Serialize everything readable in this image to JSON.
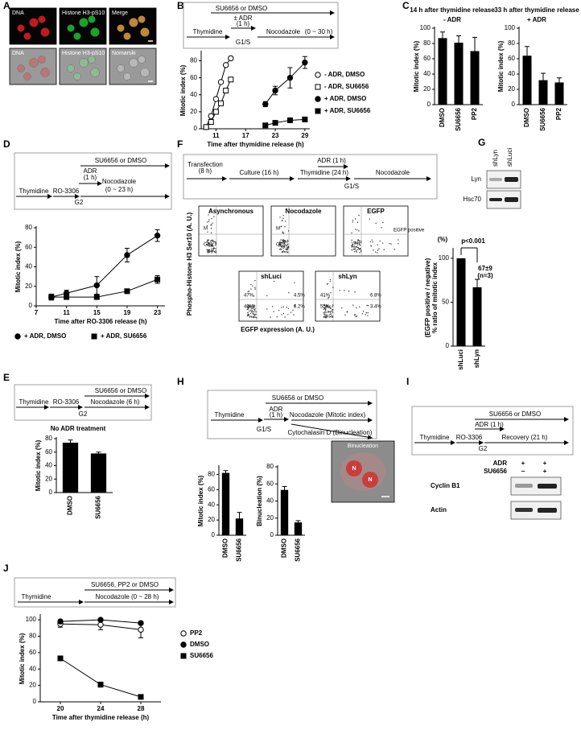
{
  "panel_labels": [
    "A",
    "B",
    "C",
    "D",
    "E",
    "F",
    "G",
    "H",
    "I",
    "J"
  ],
  "panel_a": {
    "labels": [
      "DNA",
      "Histone H3-pS10",
      "Merge",
      "DNA",
      "Histone H3-pS10",
      "Nomarski"
    ]
  },
  "schemes": {
    "b": [
      "SU6656 or DMSO",
      "± ADR",
      "(1 h)",
      "Thymidine",
      "Nocodazole",
      "(0 ~ 30 h)",
      "G1/S"
    ],
    "d": [
      "SU6656 or DMSO",
      "ADR",
      "(1 h)",
      "Thymidine",
      "RO-3306",
      "Nocodazole",
      "(0 ~ 23 h)",
      "G2"
    ],
    "e": [
      "SU6656 or DMSO",
      "Thymidine",
      "RO-3306",
      "Nocodazole (6 h)",
      "G2"
    ],
    "f": [
      "Transfection",
      "(8 h)",
      "Culture (16 h)",
      "ADR (1 h)",
      "Thymidine (24 h)",
      "G1/S",
      "Nocodazole"
    ],
    "h": [
      "SU6656 or DMSO",
      "ADR",
      "(1 h)",
      "Thymidine",
      "G1/S",
      "Nocodazole (Mitotic index)",
      "Cytochalasin D (Binucleation)"
    ],
    "i": [
      "SU6656 or DMSO",
      "ADR (1 h)",
      "Thymidine",
      "RO-3306",
      "Recovery (21 h)",
      "G2"
    ],
    "j": [
      "SU6656, PP2 or DMSO",
      "Thymidine",
      "Nocodazole (0 ~ 28 h)"
    ]
  },
  "panel_f": {
    "ylabel": "Phospho-Histone H3 Ser10 (A. U.)",
    "xlabel": "EGFP expression (A. U.)",
    "plots": [
      {
        "title": "Asynchronous",
        "labels": [
          "M",
          "G2"
        ]
      },
      {
        "title": "Nocodazole",
        "labels": [
          "M",
          "G2"
        ]
      },
      {
        "title": "EGFP",
        "labels": [
          "EGFP positive"
        ]
      },
      {
        "title": "shLuci",
        "labels": [
          "47%",
          "40%",
          "4.5%",
          "8.2%"
        ]
      },
      {
        "title": "shLyn",
        "labels": [
          "41%",
          "55%",
          "6.8%",
          "3.4%"
        ]
      }
    ]
  },
  "panel_g": {
    "lanes": [
      "shLyn",
      "shLuci"
    ],
    "blots": [
      "Lyn",
      "Hsc70"
    ]
  },
  "panel_h": {
    "title": "Binucleation",
    "labels": [
      "N",
      "N"
    ]
  },
  "panel_i": {
    "rows": [
      [
        "ADR",
        "+",
        "+"
      ],
      [
        "SU6656",
        "−",
        "+"
      ]
    ],
    "blots": [
      "Cyclin B1",
      "Actin"
    ]
  },
  "chart_data": [
    {
      "type": "line",
      "xlabel": "Time after thymidine release (h)",
      "ylabel": [
        "Mitotic index (%)"
      ],
      "xlim": [
        8,
        30
      ],
      "xticks": [
        11,
        17,
        23,
        29
      ],
      "ylim": [
        0,
        90
      ],
      "yticks": [
        0,
        20,
        40,
        60,
        80
      ],
      "series": [
        {
          "name": "- ADR, DMSO",
          "marker": "circle",
          "filled": false,
          "color": "#000000",
          "x": [
            9,
            10,
            11,
            12,
            13,
            14
          ],
          "values": [
            2,
            15,
            35,
            55,
            75,
            83
          ]
        },
        {
          "name": "- ADR, SU6656",
          "marker": "square",
          "filled": false,
          "color": "#000000",
          "x": [
            9,
            10,
            11,
            12,
            13,
            14
          ],
          "values": [
            2,
            8,
            20,
            30,
            45,
            58
          ]
        },
        {
          "name": "+ ADR, DMSO",
          "marker": "circle",
          "filled": true,
          "color": "#000000",
          "x": [
            21,
            23,
            26,
            29
          ],
          "values": [
            29,
            45,
            60,
            78
          ],
          "errors": [
            3,
            5,
            12,
            7
          ]
        },
        {
          "name": "+ ADR, SU6656",
          "marker": "square",
          "filled": true,
          "color": "#000000",
          "x": [
            21,
            23,
            26,
            29
          ],
          "values": [
            4,
            7,
            10,
            11
          ]
        }
      ]
    },
    {
      "type": "bar",
      "title": "14 h after thymidine release",
      "subtitle": "- ADR",
      "ylabel": [
        "Mitotic index (%)"
      ],
      "categories": [
        "DMSO",
        "SU6656",
        "PP2"
      ],
      "values": [
        87,
        81,
        70
      ],
      "errors": [
        8,
        9,
        18
      ],
      "color": "#000000",
      "ylim": [
        0,
        100
      ],
      "yticks": [
        0,
        20,
        40,
        60,
        80,
        100
      ]
    },
    {
      "type": "bar",
      "title": "33 h after thymidine release",
      "subtitle": "+ ADR",
      "ylabel": [
        "Mitotic index (%)"
      ],
      "categories": [
        "DMSO",
        "SU6656",
        "PP2"
      ],
      "values": [
        64,
        32,
        29
      ],
      "errors": [
        12,
        9,
        6
      ],
      "color": "#000000",
      "ylim": [
        0,
        100
      ],
      "yticks": [
        0,
        20,
        40,
        60,
        80,
        100
      ]
    },
    {
      "type": "line",
      "xlabel": "Time after RO-3306 release (h)",
      "ylabel": [
        "Mitotic index (%)"
      ],
      "xlim": [
        7,
        24
      ],
      "xticks": [
        7,
        11,
        15,
        19,
        23
      ],
      "ylim": [
        0,
        80
      ],
      "yticks": [
        0,
        20,
        40,
        60,
        80
      ],
      "series": [
        {
          "name": "+ ADR, DMSO",
          "marker": "circle",
          "filled": true,
          "color": "#000000",
          "x": [
            9,
            11,
            15,
            19,
            23
          ],
          "values": [
            9,
            13,
            21,
            52,
            72
          ],
          "errors": [
            3,
            3,
            9,
            7,
            6
          ]
        },
        {
          "name": "+ ADR, SU6656",
          "marker": "square",
          "filled": true,
          "color": "#000000",
          "x": [
            9,
            11,
            15,
            19,
            23
          ],
          "values": [
            9,
            9,
            9,
            15,
            27
          ],
          "errors": [
            3,
            2,
            2,
            1,
            4
          ]
        }
      ]
    },
    {
      "type": "bar",
      "title": "No ADR treatment",
      "ylabel": [
        "Mitotic index (%)"
      ],
      "categories": [
        "DMSO",
        "SU6656"
      ],
      "values": [
        74,
        58
      ],
      "errors": [
        4,
        2
      ],
      "color": "#000000",
      "ylim": [
        0,
        80
      ],
      "yticks": [
        0,
        20,
        40,
        60,
        80
      ]
    },
    {
      "type": "bar",
      "ylabel": [
        "% ratio of mitotic index",
        "(EGFP positive / negative)"
      ],
      "categories": [
        "shLuci",
        "shLyn"
      ],
      "values": [
        100,
        67
      ],
      "errors": [
        null,
        9
      ],
      "color": "#000000",
      "ylim": [
        0,
        110
      ],
      "yticks": [
        0,
        50,
        100
      ],
      "annotations": [
        "(%)",
        "p<0.001",
        "67±9",
        "(n=3)"
      ]
    },
    {
      "type": "bar",
      "ylabel": [
        "Mitotic index (%)"
      ],
      "categories": [
        "DMSO",
        "SU6656"
      ],
      "values": [
        82,
        22
      ],
      "errors": [
        3,
        8
      ],
      "color": "#000000",
      "ylim": [
        0,
        90
      ],
      "yticks": [
        0,
        20,
        40,
        60,
        80
      ]
    },
    {
      "type": "bar",
      "ylabel": [
        "Binucleation (%)"
      ],
      "categories": [
        "DMSO",
        "SU6656"
      ],
      "values": [
        53,
        15
      ],
      "errors": [
        4,
        2
      ],
      "color": "#000000",
      "ylim": [
        0,
        80
      ],
      "yticks": [
        0,
        20,
        40,
        60,
        80
      ]
    },
    {
      "type": "line",
      "xlabel": "Time after thymidine release (h)",
      "ylabel": [
        "Mitotic index (%)"
      ],
      "xlim": [
        18,
        30
      ],
      "xticks": [
        20,
        24,
        28
      ],
      "ylim": [
        0,
        105
      ],
      "yticks": [
        0,
        20,
        40,
        60,
        80,
        100
      ],
      "series": [
        {
          "name": "PP2",
          "marker": "circle",
          "filled": false,
          "color": "#000000",
          "x": [
            20,
            24,
            28
          ],
          "values": [
            95,
            94,
            88
          ],
          "errors": [
            4,
            6,
            10
          ]
        },
        {
          "name": "DMSO",
          "marker": "circle",
          "filled": true,
          "color": "#000000",
          "x": [
            20,
            24,
            28
          ],
          "values": [
            98,
            100,
            96
          ],
          "errors": [
            2,
            1,
            2
          ]
        },
        {
          "name": "SU6656",
          "marker": "square",
          "filled": true,
          "color": "#000000",
          "x": [
            20,
            24,
            28
          ],
          "values": [
            53,
            21,
            6
          ],
          "errors": [
            2,
            3,
            2
          ]
        }
      ]
    }
  ]
}
